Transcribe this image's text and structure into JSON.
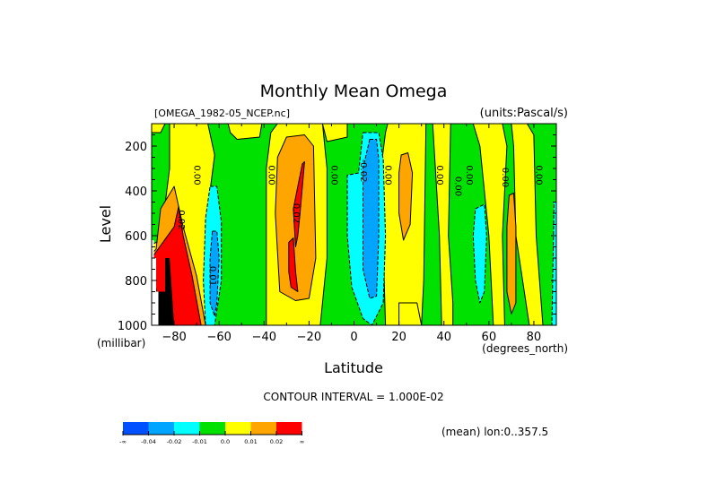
{
  "chart_data": {
    "type": "heatmap",
    "subtype": "filled-contour",
    "title": "Monthly Mean Omega",
    "file_label": "[OMEGA_1982-05_NCEP.nc]",
    "units_label": "(units:Pascal/s)",
    "xlabel": "Latitude",
    "xunits": "(degrees_north)",
    "ylabel": "Level",
    "yunits": "(millibar)",
    "xlim": [
      -90,
      90
    ],
    "ylim": [
      1000,
      100
    ],
    "y_inverted": true,
    "x_ticks": [
      -80,
      -60,
      -40,
      -20,
      0,
      20,
      40,
      60,
      80
    ],
    "x_tick_labels": [
      "-80",
      "-60",
      "-40",
      "-20",
      "0",
      "20",
      "40",
      "60",
      "80"
    ],
    "y_ticks": [
      200,
      400,
      600,
      800,
      1000
    ],
    "y_tick_labels": [
      "200",
      "400",
      "600",
      "800",
      "1000"
    ],
    "contour_interval_label": "CONTOUR INTERVAL = 1.000E-02",
    "contour_interval": 0.01,
    "contour_labels": [
      {
        "text": "0.00",
        "lat": -71,
        "lev": 330
      },
      {
        "text": "0.02",
        "lat": -78,
        "lev": 530
      },
      {
        "text": "0.01",
        "lat": -64,
        "lev": 780
      },
      {
        "text": "0.00",
        "lat": -38,
        "lev": 330
      },
      {
        "text": "0.02",
        "lat": -27,
        "lev": 500
      },
      {
        "text": "0.00",
        "lat": -10,
        "lev": 330
      },
      {
        "text": "-0.02",
        "lat": 3,
        "lev": 310
      },
      {
        "text": "0.00",
        "lat": 14,
        "lev": 330
      },
      {
        "text": "0.00",
        "lat": 37,
        "lev": 330
      },
      {
        "text": "0.00",
        "lat": 45,
        "lev": 380
      },
      {
        "text": "0.00",
        "lat": 50,
        "lev": 330
      },
      {
        "text": "0.00",
        "lat": 66,
        "lev": 340
      },
      {
        "text": "0.00",
        "lat": 81,
        "lev": 330
      }
    ],
    "colorbar": {
      "bins": [
        {
          "label": "-∞",
          "color": "#0050ff"
        },
        {
          "label": "-0.04",
          "color": "#00a5ff"
        },
        {
          "label": "-0.02",
          "color": "#00ffff"
        },
        {
          "label": "-0.01",
          "color": "#00e100"
        },
        {
          "label": "0.0",
          "color": "#ffff00"
        },
        {
          "label": "0.01",
          "color": "#ffa500"
        },
        {
          "label": "0.02",
          "color": "#ff0000"
        }
      ],
      "end_label": "∞"
    },
    "regions": [
      {
        "level": "neg-0.01",
        "color": "#00e100",
        "poly": [
          [
            -90,
            100
          ],
          [
            90,
            100
          ],
          [
            90,
            1000
          ],
          [
            -90,
            1000
          ]
        ]
      },
      {
        "level": "0.0",
        "color": "#ffff00",
        "poly": [
          [
            -82,
            100
          ],
          [
            -65,
            100
          ],
          [
            -62,
            240
          ],
          [
            -64,
            400
          ],
          [
            -66,
            700
          ],
          [
            -62,
            1000
          ],
          [
            -90,
            1000
          ],
          [
            -90,
            640
          ],
          [
            -86,
            620
          ],
          [
            -82,
            300
          ]
        ]
      },
      {
        "level": "0.0",
        "color": "#ffff00",
        "poly": [
          [
            -56,
            100
          ],
          [
            -41,
            100
          ],
          [
            -42,
            160
          ],
          [
            -52,
            170
          ],
          [
            -55,
            140
          ]
        ]
      },
      {
        "level": "0.0",
        "color": "#ffff00",
        "poly": [
          [
            -90,
            100
          ],
          [
            -84,
            100
          ],
          [
            -86,
            140
          ],
          [
            -90,
            140
          ]
        ]
      },
      {
        "level": "0.0",
        "color": "#ffff00",
        "poly": [
          [
            -34,
            100
          ],
          [
            -14,
            100
          ],
          [
            -12,
            300
          ],
          [
            -12,
            700
          ],
          [
            -15,
            1000
          ],
          [
            -39,
            1000
          ],
          [
            -39,
            300
          ],
          [
            -37,
            140
          ]
        ]
      },
      {
        "level": "0.0",
        "color": "#ffff00",
        "poly": [
          [
            -14,
            100
          ],
          [
            -3,
            100
          ],
          [
            -3,
            160
          ],
          [
            -12,
            180
          ]
        ]
      },
      {
        "level": "0.0",
        "color": "#ffff00",
        "poly": [
          [
            15,
            100
          ],
          [
            32,
            100
          ],
          [
            31,
            800
          ],
          [
            30,
            1000
          ],
          [
            14,
            1000
          ],
          [
            12,
            300
          ],
          [
            14,
            140
          ]
        ]
      },
      {
        "level": "0.0",
        "color": "#ffff00",
        "poly": [
          [
            35,
            100
          ],
          [
            43,
            100
          ],
          [
            42,
            600
          ],
          [
            44,
            900
          ],
          [
            44,
            1000
          ],
          [
            39,
            1000
          ],
          [
            38,
            600
          ]
        ]
      },
      {
        "level": "0.0",
        "color": "#ffff00",
        "poly": [
          [
            53,
            100
          ],
          [
            66,
            100
          ],
          [
            68,
            200
          ],
          [
            66,
            600
          ],
          [
            67,
            1000
          ],
          [
            62,
            1000
          ],
          [
            60,
            600
          ],
          [
            56,
            200
          ]
        ]
      },
      {
        "level": "0.0",
        "color": "#ffff00",
        "poly": [
          [
            70,
            100
          ],
          [
            77,
            100
          ],
          [
            80,
            150
          ],
          [
            81,
            600
          ],
          [
            84,
            1000
          ],
          [
            78,
            1000
          ],
          [
            72,
            600
          ],
          [
            71,
            200
          ]
        ]
      },
      {
        "level": "0.0",
        "color": "#ffff00",
        "poly": [
          [
            20,
            900
          ],
          [
            28,
            900
          ],
          [
            30,
            1000
          ],
          [
            20,
            1000
          ]
        ]
      },
      {
        "level": "0.01",
        "color": "#ffa500",
        "poly": [
          [
            -86,
            480
          ],
          [
            -80,
            380
          ],
          [
            -76,
            560
          ],
          [
            -70,
            780
          ],
          [
            -66,
            1000
          ],
          [
            -84,
            1000
          ],
          [
            -90,
            760
          ],
          [
            -90,
            680
          ],
          [
            -88,
            660
          ]
        ]
      },
      {
        "level": "0.01",
        "color": "#ffa500",
        "poly": [
          [
            -30,
            160
          ],
          [
            -22,
            150
          ],
          [
            -18,
            200
          ],
          [
            -17,
            700
          ],
          [
            -20,
            880
          ],
          [
            -26,
            890
          ],
          [
            -33,
            850
          ],
          [
            -35,
            500
          ],
          [
            -34,
            250
          ]
        ]
      },
      {
        "level": "0.01",
        "color": "#ffa500",
        "poly": [
          [
            21,
            240
          ],
          [
            24,
            230
          ],
          [
            26,
            320
          ],
          [
            25,
            550
          ],
          [
            22,
            620
          ],
          [
            20,
            500
          ],
          [
            20,
            320
          ]
        ]
      },
      {
        "level": "0.01",
        "color": "#ffa500",
        "poly": [
          [
            69,
            420
          ],
          [
            71,
            410
          ],
          [
            72,
            560
          ],
          [
            72,
            900
          ],
          [
            70,
            950
          ],
          [
            68,
            850
          ],
          [
            68,
            560
          ]
        ]
      },
      {
        "level": "0.02",
        "color": "#ff0000",
        "poly": [
          [
            -80,
            560
          ],
          [
            -78,
            470
          ],
          [
            -76,
            600
          ],
          [
            -72,
            780
          ],
          [
            -68,
            1000
          ],
          [
            -84,
            1000
          ],
          [
            -88,
            840
          ],
          [
            -90,
            760
          ],
          [
            -90,
            700
          ]
        ]
      },
      {
        "level": "0.02",
        "color": "#ff0000",
        "poly": [
          [
            -23,
            280
          ],
          [
            -22,
            270
          ],
          [
            -24,
            500
          ],
          [
            -25,
            600
          ],
          [
            -26,
            650
          ],
          [
            -27,
            480
          ]
        ]
      },
      {
        "level": "0.02",
        "color": "#ff0000",
        "poly": [
          [
            -29,
            630
          ],
          [
            -27,
            610
          ],
          [
            -26,
            760
          ],
          [
            -25,
            850
          ],
          [
            -28,
            830
          ],
          [
            -29,
            760
          ]
        ]
      },
      {
        "level": "neg-0.02",
        "color": "#00ffff",
        "poly": [
          [
            -64,
            380
          ],
          [
            -61,
            380
          ],
          [
            -59,
            540
          ],
          [
            -59,
            800
          ],
          [
            -62,
            1000
          ],
          [
            -66,
            1000
          ],
          [
            -67,
            800
          ],
          [
            -66,
            520
          ]
        ]
      },
      {
        "level": "neg-0.02",
        "color": "#00ffff",
        "poly": [
          [
            4,
            140
          ],
          [
            11,
            140
          ],
          [
            13,
            260
          ],
          [
            14,
            600
          ],
          [
            13,
            900
          ],
          [
            8,
            1000
          ],
          [
            4,
            970
          ],
          [
            -1,
            830
          ],
          [
            -3,
            600
          ],
          [
            -3,
            330
          ],
          [
            2,
            320
          ]
        ]
      },
      {
        "level": "neg-0.02",
        "color": "#00ffff",
        "poly": [
          [
            54,
            480
          ],
          [
            58,
            460
          ],
          [
            59,
            600
          ],
          [
            58,
            850
          ],
          [
            56,
            900
          ],
          [
            54,
            800
          ],
          [
            53,
            600
          ]
        ]
      },
      {
        "level": "neg-0.02",
        "color": "#00ffff",
        "poly": [
          [
            89,
            450
          ],
          [
            90,
            450
          ],
          [
            90,
            1000
          ],
          [
            88,
            1000
          ]
        ]
      },
      {
        "level": "neg-0.04",
        "color": "#00a5ff",
        "poly": [
          [
            -63,
            580
          ],
          [
            -61,
            580
          ],
          [
            -60,
            700
          ],
          [
            -61,
            900
          ],
          [
            -62,
            960
          ],
          [
            -64,
            900
          ],
          [
            -64,
            700
          ]
        ]
      },
      {
        "level": "neg-0.04",
        "color": "#00a5ff",
        "poly": [
          [
            7,
            170
          ],
          [
            10,
            170
          ],
          [
            11,
            260
          ],
          [
            11,
            600
          ],
          [
            10,
            870
          ],
          [
            7,
            880
          ],
          [
            4,
            750
          ],
          [
            4,
            300
          ]
        ]
      }
    ]
  },
  "footer": {
    "mean_label": "(mean) lon:0..357.5"
  }
}
